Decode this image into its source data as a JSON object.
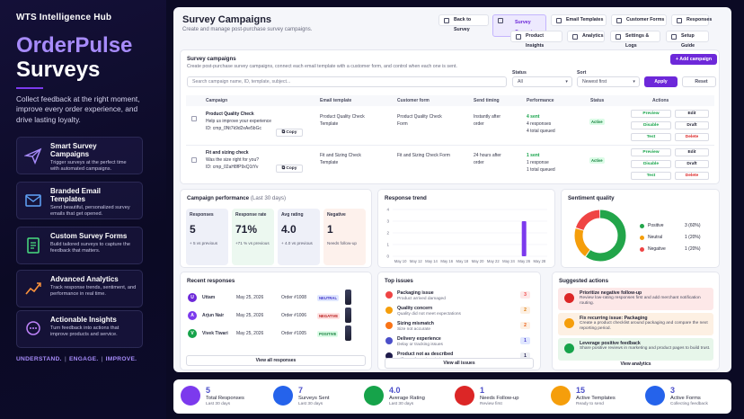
{
  "hero": {
    "brand": "WTS Intelligence Hub",
    "title_line1": "OrderPulse",
    "title_line2": "Surveys",
    "tagline": "Collect feedback at the right moment, improve every order experience, and drive lasting loyalty.",
    "features": [
      {
        "title": "Smart Survey Campaigns",
        "desc": "Trigger surveys at the perfect time with automated campaigns.",
        "icon": "paper-plane-icon"
      },
      {
        "title": "Branded Email Templates",
        "desc": "Send beautiful, personalized survey emails that get opened.",
        "icon": "envelope-icon"
      },
      {
        "title": "Custom Survey Forms",
        "desc": "Build tailored surveys to capture the feedback that matters.",
        "icon": "form-icon"
      },
      {
        "title": "Advanced Analytics",
        "desc": "Track response trends, sentiment, and performance in real time.",
        "icon": "trend-chart-icon"
      },
      {
        "title": "Actionable Insights",
        "desc": "Turn feedback into actions that improve products and service.",
        "icon": "chat-bubble-icon"
      }
    ],
    "slogan": [
      "UNDERSTAND.",
      "ENGAGE.",
      "IMPROVE."
    ],
    "slogan_sep": "|"
  },
  "header": {
    "title": "Survey Campaigns",
    "subtitle": "Create and manage post-purchase survey campaigns.",
    "nav_row1": [
      "Back to Survey",
      "Survey Campaigns",
      "Email Templates",
      "Customer Forms",
      "Responses"
    ],
    "nav_row2": [
      "Product Insights",
      "Analytics",
      "Settings & Logs",
      "Setup Guide"
    ]
  },
  "campaigns": {
    "title": "Survey campaigns",
    "subtitle": "Create post-purchase survey campaigns, connect each email template with a customer form, and control when each one is sent.",
    "add_label": "+ Add campaign",
    "search_placeholder": "Search campaign name, ID, template, subject...",
    "status_label": "Status",
    "status_value": "All",
    "sort_label": "Sort",
    "sort_value": "Newest first",
    "apply_label": "Apply",
    "reset_label": "Reset",
    "columns": [
      "Campaign",
      "Email template",
      "Customer form",
      "Send timing",
      "Performance",
      "Status",
      "Actions"
    ],
    "rows": [
      {
        "name": "Product Quality Check",
        "desc": "Help us improve your experience",
        "id": "ID: cmp_0Nt7k9d2xAe5bGc",
        "copy": "Copy",
        "template": "Product Quality Check Template",
        "form": "Product Quality Check Form",
        "timing": "Instantly after order",
        "perf1": "4 sent",
        "perf2": "4 responses",
        "perf3": "4 total queued",
        "status": "Active",
        "actions": [
          "Preview",
          "Edit",
          "Disable",
          "Draft",
          "Test",
          "Delete"
        ]
      },
      {
        "name": "Fit and sizing check",
        "desc": "Was the size right for you?",
        "id": "ID: cmp_02aH8fP9xQ1tYv",
        "copy": "Copy",
        "template": "Fit and Sizing Check Template",
        "form": "Fit and Sizing Check Form",
        "timing": "24 hours after order",
        "perf1": "1 sent",
        "perf2": "1 response",
        "perf3": "1 total queued",
        "status": "Active",
        "actions": [
          "Preview",
          "Edit",
          "Disable",
          "Draft",
          "Test",
          "Delete"
        ]
      }
    ]
  },
  "performance": {
    "title": "Campaign performance",
    "period": "(Last 30 days)",
    "stats": [
      {
        "label": "Responses",
        "value": "5",
        "foot": "+ 5 vs previous",
        "color": "#eef0f8"
      },
      {
        "label": "Response rate",
        "value": "71%",
        "foot": "+71 % vs previous",
        "color": "#ecf8f0"
      },
      {
        "label": "Avg rating",
        "value": "4.0",
        "foot": "+ 4.0 vs previous",
        "color": "#eef0f8"
      },
      {
        "label": "Negative",
        "value": "1",
        "foot": "Needs follow-up",
        "color": "#fdf1ec"
      }
    ]
  },
  "trend": {
    "title": "Response trend"
  },
  "chart_data": {
    "type": "bar",
    "title": "Response trend",
    "categories": [
      "May 10",
      "May 12",
      "May 14",
      "May 16",
      "May 18",
      "May 20",
      "May 22",
      "May 24",
      "May 26",
      "May 28"
    ],
    "values": [
      0,
      0,
      0,
      0,
      0,
      0,
      0,
      0,
      3,
      0
    ],
    "ylim": [
      0,
      4
    ],
    "yticks": [
      0,
      1,
      2,
      3,
      4
    ],
    "color": "#7c3aed",
    "grid": true
  },
  "sentiment": {
    "title": "Sentiment quality",
    "items": [
      {
        "label": "Positive",
        "value": "3 (60%)",
        "pct": 60,
        "color": "#22a54a"
      },
      {
        "label": "Neutral",
        "value": "1 (20%)",
        "pct": 20,
        "color": "#f59e0b"
      },
      {
        "label": "Negative",
        "value": "1 (20%)",
        "pct": 20,
        "color": "#ef4444"
      }
    ]
  },
  "recent": {
    "title": "Recent responses",
    "rows": [
      {
        "initial": "U",
        "name": "Uttam",
        "date": "May 25, 2026",
        "order": "Order #1008",
        "badge": "NEUTRAL",
        "badge_color": "#e0e7ff",
        "badge_text": "#4338ca",
        "avatar": "#6d28d9"
      },
      {
        "initial": "A",
        "name": "Arjun Nair",
        "date": "May 25, 2026",
        "order": "Order #1006",
        "badge": "NEGATIVE",
        "badge_color": "#fee2e2",
        "badge_text": "#b91c1c",
        "avatar": "#7c3aed"
      },
      {
        "initial": "V",
        "name": "Vivek Tiwari",
        "date": "May 25, 2026",
        "order": "Order #1005",
        "badge": "POSITIVE",
        "badge_color": "#dcfce7",
        "badge_text": "#15803d",
        "avatar": "#16a34a"
      }
    ],
    "view_all": "View all responses"
  },
  "issues": {
    "title": "Top issues",
    "items": [
      {
        "title": "Packaging issue",
        "sub": "Product arrived damaged",
        "count": "3",
        "color": "#ef4444"
      },
      {
        "title": "Quality concern",
        "sub": "Quality did not meet expectations",
        "count": "2",
        "color": "#f59e0b"
      },
      {
        "title": "Sizing mismatch",
        "sub": "Size not accurate",
        "count": "2",
        "color": "#f97316"
      },
      {
        "title": "Delivery experience",
        "sub": "Delay or tracking issues",
        "count": "1",
        "color": "#4b4fc9"
      },
      {
        "title": "Product not as described",
        "sub": "Different from description",
        "count": "1",
        "color": "#1e1b4b"
      }
    ],
    "view_all": "View all issues"
  },
  "suggested": {
    "title": "Suggested actions",
    "items": [
      {
        "title": "Prioritize negative follow-up",
        "desc": "Review low-rating responses first and add merchant notification routing.",
        "bg": "#fde8e8",
        "icon": "#dc2626"
      },
      {
        "title": "Fix recurring issue: Packaging",
        "desc": "Create a product checklist around packaging and compare the next reporting period.",
        "bg": "#fdf0e3",
        "icon": "#f59e0b"
      },
      {
        "title": "Leverage positive feedback",
        "desc": "Share positive reviews in marketing and product pages to build trust.",
        "bg": "#e7f6ea",
        "icon": "#16a34a"
      }
    ],
    "view_all": "View analytics"
  },
  "kpis": [
    {
      "value": "5",
      "label": "Total Responses",
      "sub": "Last 30 days",
      "color": "#7c3aed"
    },
    {
      "value": "7",
      "label": "Surveys Sent",
      "sub": "Last 30 days",
      "color": "#2563eb"
    },
    {
      "value": "4.0",
      "label": "Average Rating",
      "sub": "Last 30 days",
      "color": "#16a34a"
    },
    {
      "value": "1",
      "label": "Needs Follow-up",
      "sub": "Review first",
      "color": "#dc2626"
    },
    {
      "value": "15",
      "label": "Active Templates",
      "sub": "Ready to send",
      "color": "#f59e0b"
    },
    {
      "value": "3",
      "label": "Active Forms",
      "sub": "Collecting feedback",
      "color": "#2563eb"
    }
  ]
}
